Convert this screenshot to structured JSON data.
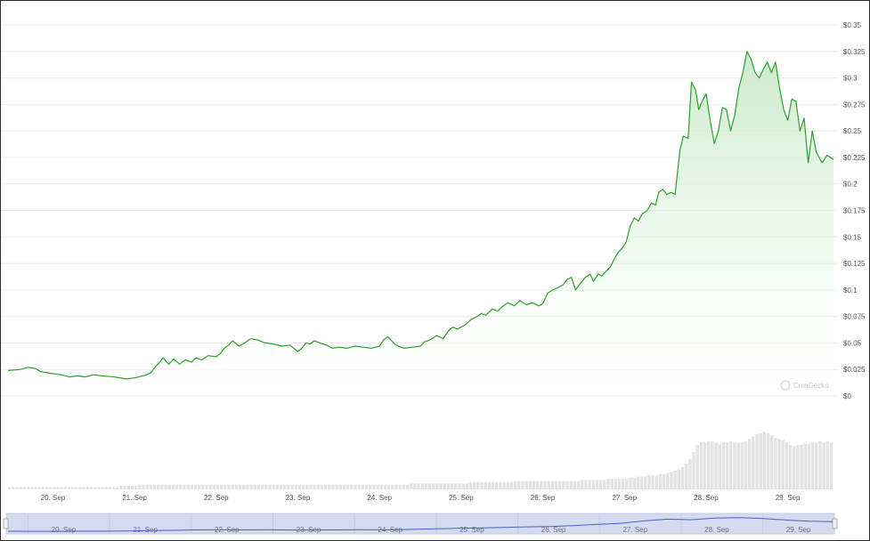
{
  "watermark": "CoinGecko",
  "colors": {
    "line": "#2aa02a",
    "area_top": "#c8e8c8",
    "volume": "#e3e3e3",
    "navigator_fill": "#d4dbee",
    "navigator_line": "#4a5fbf",
    "grid": "#ececec"
  },
  "chart_data": {
    "type": "area",
    "title": "",
    "xlabel": "",
    "ylabel": "",
    "ylim": [
      0,
      0.35
    ],
    "y_ticks": [
      {
        "value": 0,
        "label": "$0"
      },
      {
        "value": 0.025,
        "label": "$0.025"
      },
      {
        "value": 0.05,
        "label": "$0.05"
      },
      {
        "value": 0.075,
        "label": "$0.075"
      },
      {
        "value": 0.1,
        "label": "$0.1"
      },
      {
        "value": 0.125,
        "label": "$0.125"
      },
      {
        "value": 0.15,
        "label": "$0.15"
      },
      {
        "value": 0.175,
        "label": "$0.175"
      },
      {
        "value": 0.2,
        "label": "$0.2"
      },
      {
        "value": 0.225,
        "label": "$0.225"
      },
      {
        "value": 0.25,
        "label": "$0.25"
      },
      {
        "value": 0.275,
        "label": "$0.275"
      },
      {
        "value": 0.3,
        "label": "$0.3"
      },
      {
        "value": 0.325,
        "label": "$0.325"
      },
      {
        "value": 0.35,
        "label": "$0.35"
      }
    ],
    "x_ticks": [
      {
        "value": 20,
        "label": "20. Sep"
      },
      {
        "value": 21,
        "label": "21. Sep"
      },
      {
        "value": 22,
        "label": "22. Sep"
      },
      {
        "value": 23,
        "label": "23. Sep"
      },
      {
        "value": 24,
        "label": "24. Sep"
      },
      {
        "value": 25,
        "label": "25. Sep"
      },
      {
        "value": 26,
        "label": "26. Sep"
      },
      {
        "value": 27,
        "label": "27. Sep"
      },
      {
        "value": 28,
        "label": "28. Sep"
      },
      {
        "value": 29,
        "label": "29. Sep"
      }
    ],
    "xlim": [
      19.45,
      29.56
    ],
    "grid": true,
    "series": [
      {
        "points": [
          [
            19.45,
            0.024
          ],
          [
            19.6,
            0.025
          ],
          [
            19.7,
            0.027
          ],
          [
            19.78,
            0.026
          ],
          [
            19.85,
            0.023
          ],
          [
            20.0,
            0.021
          ],
          [
            20.1,
            0.02
          ],
          [
            20.2,
            0.018
          ],
          [
            20.3,
            0.019
          ],
          [
            20.4,
            0.018
          ],
          [
            20.5,
            0.02
          ],
          [
            20.6,
            0.019
          ],
          [
            20.75,
            0.018
          ],
          [
            20.9,
            0.016
          ],
          [
            21.0,
            0.017
          ],
          [
            21.05,
            0.018
          ],
          [
            21.15,
            0.02
          ],
          [
            21.2,
            0.022
          ],
          [
            21.25,
            0.027
          ],
          [
            21.3,
            0.031
          ],
          [
            21.35,
            0.036
          ],
          [
            21.42,
            0.03
          ],
          [
            21.48,
            0.035
          ],
          [
            21.55,
            0.03
          ],
          [
            21.62,
            0.034
          ],
          [
            21.7,
            0.032
          ],
          [
            21.75,
            0.036
          ],
          [
            21.82,
            0.034
          ],
          [
            21.9,
            0.038
          ],
          [
            22.0,
            0.037
          ],
          [
            22.05,
            0.04
          ],
          [
            22.1,
            0.045
          ],
          [
            22.15,
            0.048
          ],
          [
            22.2,
            0.052
          ],
          [
            22.28,
            0.047
          ],
          [
            22.35,
            0.05
          ],
          [
            22.42,
            0.054
          ],
          [
            22.5,
            0.053
          ],
          [
            22.6,
            0.05
          ],
          [
            22.7,
            0.049
          ],
          [
            22.8,
            0.047
          ],
          [
            22.9,
            0.048
          ],
          [
            23.0,
            0.042
          ],
          [
            23.05,
            0.045
          ],
          [
            23.1,
            0.05
          ],
          [
            23.15,
            0.049
          ],
          [
            23.2,
            0.052
          ],
          [
            23.27,
            0.05
          ],
          [
            23.35,
            0.048
          ],
          [
            23.42,
            0.045
          ],
          [
            23.5,
            0.046
          ],
          [
            23.6,
            0.045
          ],
          [
            23.7,
            0.047
          ],
          [
            23.8,
            0.046
          ],
          [
            23.9,
            0.045
          ],
          [
            24.0,
            0.047
          ],
          [
            24.05,
            0.053
          ],
          [
            24.1,
            0.056
          ],
          [
            24.15,
            0.052
          ],
          [
            24.2,
            0.048
          ],
          [
            24.3,
            0.045
          ],
          [
            24.4,
            0.046
          ],
          [
            24.5,
            0.047
          ],
          [
            24.55,
            0.051
          ],
          [
            24.62,
            0.053
          ],
          [
            24.7,
            0.057
          ],
          [
            24.78,
            0.054
          ],
          [
            24.85,
            0.062
          ],
          [
            24.9,
            0.065
          ],
          [
            24.95,
            0.063
          ],
          [
            25.0,
            0.065
          ],
          [
            25.05,
            0.067
          ],
          [
            25.12,
            0.072
          ],
          [
            25.2,
            0.075
          ],
          [
            25.25,
            0.078
          ],
          [
            25.3,
            0.076
          ],
          [
            25.38,
            0.082
          ],
          [
            25.45,
            0.08
          ],
          [
            25.5,
            0.084
          ],
          [
            25.57,
            0.088
          ],
          [
            25.65,
            0.085
          ],
          [
            25.72,
            0.09
          ],
          [
            25.8,
            0.086
          ],
          [
            25.87,
            0.088
          ],
          [
            25.95,
            0.085
          ],
          [
            26.0,
            0.087
          ],
          [
            26.06,
            0.097
          ],
          [
            26.12,
            0.1
          ],
          [
            26.18,
            0.102
          ],
          [
            26.25,
            0.105
          ],
          [
            26.3,
            0.11
          ],
          [
            26.35,
            0.112
          ],
          [
            26.4,
            0.1
          ],
          [
            26.45,
            0.105
          ],
          [
            26.52,
            0.112
          ],
          [
            26.58,
            0.115
          ],
          [
            26.62,
            0.108
          ],
          [
            26.68,
            0.115
          ],
          [
            26.72,
            0.113
          ],
          [
            26.78,
            0.118
          ],
          [
            26.83,
            0.122
          ],
          [
            26.88,
            0.13
          ],
          [
            26.92,
            0.135
          ],
          [
            26.98,
            0.14
          ],
          [
            27.02,
            0.145
          ],
          [
            27.07,
            0.16
          ],
          [
            27.12,
            0.168
          ],
          [
            27.17,
            0.165
          ],
          [
            27.22,
            0.172
          ],
          [
            27.28,
            0.175
          ],
          [
            27.33,
            0.182
          ],
          [
            27.38,
            0.18
          ],
          [
            27.42,
            0.192
          ],
          [
            27.47,
            0.195
          ],
          [
            27.52,
            0.19
          ],
          [
            27.57,
            0.192
          ],
          [
            27.62,
            0.19
          ],
          [
            27.68,
            0.232
          ],
          [
            27.72,
            0.245
          ],
          [
            27.78,
            0.243
          ],
          [
            27.82,
            0.296
          ],
          [
            27.87,
            0.289
          ],
          [
            27.91,
            0.27
          ],
          [
            27.95,
            0.278
          ],
          [
            28.0,
            0.285
          ],
          [
            28.05,
            0.26
          ],
          [
            28.1,
            0.238
          ],
          [
            28.15,
            0.25
          ],
          [
            28.2,
            0.272
          ],
          [
            28.25,
            0.27
          ],
          [
            28.3,
            0.25
          ],
          [
            28.35,
            0.265
          ],
          [
            28.4,
            0.29
          ],
          [
            28.45,
            0.305
          ],
          [
            28.5,
            0.325
          ],
          [
            28.55,
            0.318
          ],
          [
            28.6,
            0.305
          ],
          [
            28.65,
            0.3
          ],
          [
            28.7,
            0.308
          ],
          [
            28.75,
            0.315
          ],
          [
            28.8,
            0.305
          ],
          [
            28.85,
            0.315
          ],
          [
            28.9,
            0.29
          ],
          [
            28.95,
            0.27
          ],
          [
            29.0,
            0.26
          ],
          [
            29.05,
            0.28
          ],
          [
            29.1,
            0.278
          ],
          [
            29.15,
            0.25
          ],
          [
            29.2,
            0.262
          ],
          [
            29.25,
            0.22
          ],
          [
            29.3,
            0.25
          ],
          [
            29.35,
            0.23
          ],
          [
            29.42,
            0.22
          ],
          [
            29.48,
            0.227
          ],
          [
            29.56,
            0.223
          ]
        ]
      }
    ],
    "volume": [
      2,
      2,
      2,
      2,
      2,
      2,
      2,
      2,
      2,
      2,
      2,
      2,
      2,
      2,
      2,
      2,
      2,
      2,
      2,
      2,
      2,
      2,
      2,
      2,
      2,
      2,
      2,
      2,
      2,
      2,
      3,
      3,
      3,
      3,
      3,
      4,
      4,
      4,
      4,
      4,
      4,
      4,
      4,
      4,
      4,
      4,
      4,
      4,
      4,
      4,
      4,
      4,
      4,
      4,
      4,
      4,
      4,
      4,
      4,
      4,
      4,
      4,
      4,
      4,
      4,
      4,
      4,
      4,
      4,
      4,
      4,
      4,
      4,
      4,
      4,
      4,
      4,
      4,
      4,
      4,
      4,
      4,
      4,
      4,
      4,
      4,
      4,
      4,
      4,
      4,
      4,
      4,
      4,
      4,
      4,
      4,
      4,
      4,
      4,
      4,
      4,
      4,
      4,
      4,
      4,
      4,
      4,
      4,
      5,
      5,
      5,
      5,
      5,
      5,
      5,
      5,
      5,
      5,
      5,
      5,
      5,
      5,
      5,
      5,
      6,
      6,
      6,
      6,
      6,
      6,
      6,
      6,
      6,
      6,
      6,
      6,
      7,
      7,
      7,
      7,
      7,
      7,
      7,
      7,
      7,
      7,
      7,
      7,
      7,
      7,
      7,
      7,
      7,
      7,
      8,
      8,
      8,
      8,
      8,
      8,
      8,
      9,
      9,
      9,
      9,
      9,
      9,
      10,
      10,
      11,
      11,
      11,
      12,
      12,
      12,
      13,
      13,
      14,
      15,
      16,
      17,
      19,
      22,
      26,
      32,
      38,
      40,
      40,
      41,
      41,
      40,
      39,
      40,
      40,
      41,
      40,
      40,
      40,
      41,
      43,
      45,
      47,
      48,
      49,
      48,
      46,
      44,
      43,
      42,
      40,
      38,
      37,
      38,
      38,
      39,
      39,
      40,
      40,
      41,
      40,
      41,
      40
    ],
    "volume_max": 60,
    "navigator": [
      0.02,
      0.018,
      0.017,
      0.019,
      0.02,
      0.025,
      0.032,
      0.038,
      0.048,
      0.05,
      0.048,
      0.05,
      0.046,
      0.045,
      0.047,
      0.052,
      0.047,
      0.058,
      0.068,
      0.08,
      0.088,
      0.1,
      0.112,
      0.12,
      0.14,
      0.165,
      0.19,
      0.24,
      0.28,
      0.265,
      0.3,
      0.31,
      0.295,
      0.26,
      0.235,
      0.225
    ]
  }
}
